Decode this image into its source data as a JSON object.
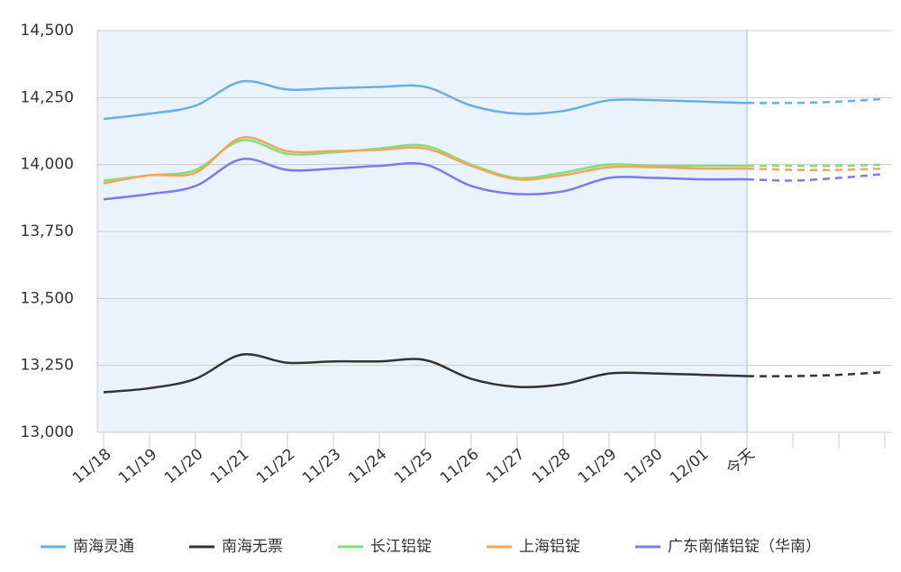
{
  "chart_data": {
    "type": "line",
    "categories": [
      "11/18",
      "11/19",
      "11/20",
      "11/21",
      "11/22",
      "11/23",
      "11/24",
      "11/25",
      "11/26",
      "11/27",
      "11/28",
      "11/29",
      "11/30",
      "12/01",
      "今天",
      null,
      null,
      null
    ],
    "forecast_start": 14,
    "shade_until": 14,
    "series": [
      {
        "name": "南海灵通",
        "color": "#6aaee8",
        "values": [
          14170,
          14190,
          14220,
          14310,
          14280,
          14285,
          14290,
          14290,
          14220,
          14190,
          14200,
          14240,
          14240,
          14235,
          14230,
          14230,
          14235,
          14245
        ]
      },
      {
        "name": "南海无票",
        "color": "#333333",
        "values": [
          13150,
          13165,
          13200,
          13290,
          13260,
          13265,
          13265,
          13270,
          13200,
          13170,
          13180,
          13220,
          13220,
          13215,
          13210,
          13210,
          13215,
          13225
        ]
      },
      {
        "name": "长江铝锭",
        "color": "#7ee07a",
        "values": [
          13940,
          13960,
          13980,
          14090,
          14040,
          14045,
          14060,
          14070,
          14000,
          13950,
          13970,
          14000,
          13995,
          13995,
          13995,
          13995,
          13995,
          14000
        ]
      },
      {
        "name": "上海铝锭",
        "color": "#f5a55a",
        "values": [
          13930,
          13960,
          13970,
          14100,
          14050,
          14050,
          14055,
          14060,
          13995,
          13945,
          13960,
          13990,
          13990,
          13985,
          13985,
          13980,
          13980,
          13985
        ]
      },
      {
        "name": "广东南储铝锭（华南）",
        "color": "#7b7bf0",
        "values": [
          13870,
          13890,
          13920,
          14020,
          13980,
          13985,
          13995,
          14000,
          13920,
          13890,
          13900,
          13950,
          13950,
          13945,
          13945,
          13940,
          13950,
          13965
        ]
      }
    ],
    "ylim": [
      13000,
      14500
    ],
    "yticks": [
      {
        "value": 13000,
        "label": "13,000"
      },
      {
        "value": 13250,
        "label": "13,250"
      },
      {
        "value": 13500,
        "label": "13,500"
      },
      {
        "value": 13750,
        "label": "13,750"
      },
      {
        "value": 14000,
        "label": "14,000"
      },
      {
        "value": 14250,
        "label": "14,250"
      },
      {
        "value": 14500,
        "label": "14,500"
      }
    ],
    "grid": true
  }
}
